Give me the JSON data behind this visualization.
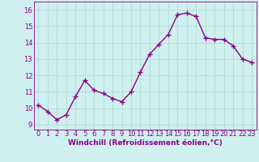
{
  "x": [
    0,
    1,
    2,
    3,
    4,
    5,
    6,
    7,
    8,
    9,
    10,
    11,
    12,
    13,
    14,
    15,
    16,
    17,
    18,
    19,
    20,
    21,
    22,
    23
  ],
  "y": [
    10.2,
    9.8,
    9.3,
    9.6,
    10.7,
    11.7,
    11.1,
    10.9,
    10.6,
    10.4,
    11.0,
    12.2,
    13.3,
    13.9,
    14.5,
    15.7,
    15.8,
    15.6,
    14.3,
    14.2,
    14.2,
    13.8,
    13.0,
    12.8
  ],
  "line_color": "#8B008B",
  "marker": "+",
  "marker_size": 4,
  "line_width": 1.0,
  "bg_color": "#cff0ee",
  "grid_color": "#aad8d4",
  "xlabel": "Windchill (Refroidissement éolien,°C)",
  "xlabel_fontsize": 6.5,
  "ytick_labels": [
    "9",
    "10",
    "11",
    "12",
    "13",
    "14",
    "15",
    "16"
  ],
  "ytick_values": [
    9,
    10,
    11,
    12,
    13,
    14,
    15,
    16
  ],
  "xtick_labels": [
    "0",
    "1",
    "2",
    "3",
    "4",
    "5",
    "6",
    "7",
    "8",
    "9",
    "10",
    "11",
    "12",
    "13",
    "14",
    "15",
    "16",
    "17",
    "18",
    "19",
    "20",
    "21",
    "22",
    "23"
  ],
  "ylim": [
    8.7,
    16.5
  ],
  "xlim": [
    -0.5,
    23.5
  ],
  "tick_fontsize": 6.0
}
